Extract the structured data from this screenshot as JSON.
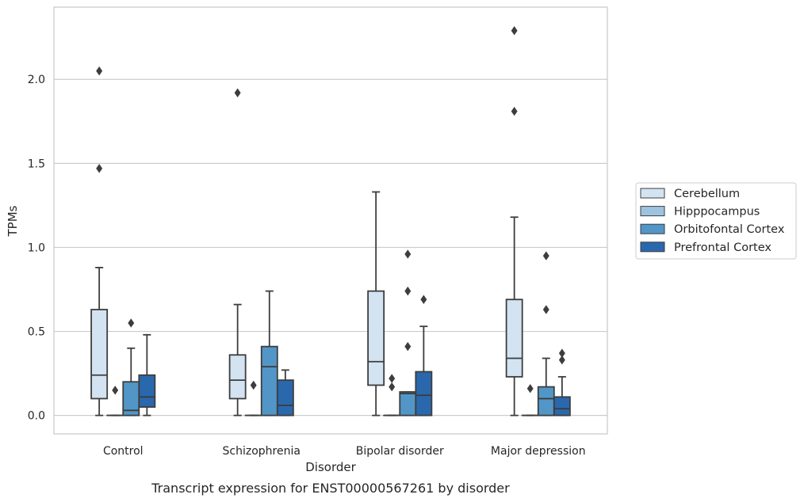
{
  "caption": "Transcript expression for ENST00000567261 by disorder",
  "chart_data": {
    "type": "box",
    "title": "",
    "xlabel": "Disorder",
    "ylabel": "TPMs",
    "ylim": [
      -0.11,
      2.43
    ],
    "yticks": [
      0.0,
      0.5,
      1.0,
      1.5,
      2.0
    ],
    "ytick_labels": [
      "0.0",
      "0.5",
      "1.0",
      "1.5",
      "2.0"
    ],
    "grid": "horizontal",
    "legend_position": "right",
    "categories": [
      "Control",
      "Schizophrenia",
      "Bipolar disorder",
      "Major depression"
    ],
    "series": [
      {
        "name": "Cerebellum",
        "color": "#d3e3f2",
        "boxes": [
          {
            "whisker_low": 0.0,
            "q1": 0.1,
            "median": 0.24,
            "q3": 0.63,
            "whisker_high": 0.88,
            "outliers": [
              1.47,
              2.05
            ]
          },
          {
            "whisker_low": 0.0,
            "q1": 0.1,
            "median": 0.21,
            "q3": 0.36,
            "whisker_high": 0.66,
            "outliers": [
              1.92
            ]
          },
          {
            "whisker_low": 0.0,
            "q1": 0.18,
            "median": 0.32,
            "q3": 0.74,
            "whisker_high": 1.33,
            "outliers": []
          },
          {
            "whisker_low": 0.0,
            "q1": 0.23,
            "median": 0.34,
            "q3": 0.69,
            "whisker_high": 1.18,
            "outliers": [
              1.81,
              2.29
            ]
          }
        ]
      },
      {
        "name": "Hipppocampus",
        "color": "#9ec3df",
        "boxes": [
          {
            "whisker_low": 0.0,
            "q1": 0.0,
            "median": 0.0,
            "q3": 0.0,
            "whisker_high": 0.0,
            "outliers": [
              0.15
            ]
          },
          {
            "whisker_low": 0.0,
            "q1": 0.0,
            "median": 0.0,
            "q3": 0.0,
            "whisker_high": 0.0,
            "outliers": [
              0.18
            ]
          },
          {
            "whisker_low": 0.0,
            "q1": 0.0,
            "median": 0.0,
            "q3": 0.0,
            "whisker_high": 0.0,
            "outliers": [
              0.17,
              0.22
            ]
          },
          {
            "whisker_low": 0.0,
            "q1": 0.0,
            "median": 0.0,
            "q3": 0.0,
            "whisker_high": 0.0,
            "outliers": [
              0.16
            ]
          }
        ]
      },
      {
        "name": "Orbitofontal Cortex",
        "color": "#5296c7",
        "boxes": [
          {
            "whisker_low": 0.0,
            "q1": 0.0,
            "median": 0.03,
            "q3": 0.2,
            "whisker_high": 0.4,
            "outliers": [
              0.55
            ]
          },
          {
            "whisker_low": 0.0,
            "q1": 0.0,
            "median": 0.29,
            "q3": 0.41,
            "whisker_high": 0.74,
            "outliers": []
          },
          {
            "whisker_low": 0.0,
            "q1": 0.0,
            "median": 0.13,
            "q3": 0.14,
            "whisker_high": 0.14,
            "outliers": [
              0.41,
              0.74,
              0.96
            ]
          },
          {
            "whisker_low": 0.0,
            "q1": 0.0,
            "median": 0.1,
            "q3": 0.17,
            "whisker_high": 0.34,
            "outliers": [
              0.63,
              0.95
            ]
          }
        ]
      },
      {
        "name": "Prefrontal Cortex",
        "color": "#2a68ad",
        "boxes": [
          {
            "whisker_low": 0.0,
            "q1": 0.05,
            "median": 0.11,
            "q3": 0.24,
            "whisker_high": 0.48,
            "outliers": []
          },
          {
            "whisker_low": 0.0,
            "q1": 0.0,
            "median": 0.06,
            "q3": 0.21,
            "whisker_high": 0.27,
            "outliers": []
          },
          {
            "whisker_low": 0.0,
            "q1": 0.0,
            "median": 0.12,
            "q3": 0.26,
            "whisker_high": 0.53,
            "outliers": [
              0.69
            ]
          },
          {
            "whisker_low": 0.0,
            "q1": 0.0,
            "median": 0.04,
            "q3": 0.11,
            "whisker_high": 0.23,
            "outliers": [
              0.33,
              0.37
            ]
          }
        ]
      }
    ],
    "colors": {
      "box_edge": "#3d3d3d",
      "grid": "#cccccc",
      "frame": "#cccccc",
      "text": "#262626"
    }
  }
}
